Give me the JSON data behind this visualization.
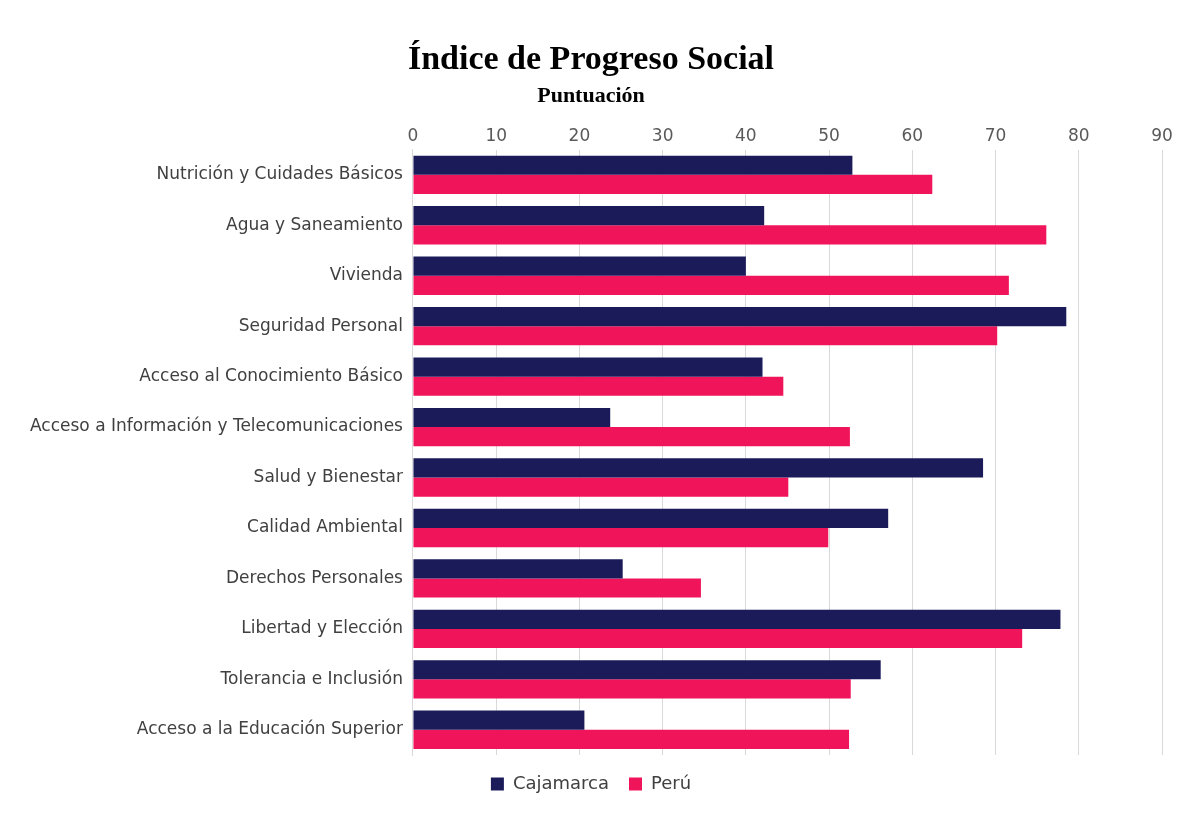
{
  "chart_data": {
    "type": "bar",
    "orientation": "horizontal",
    "title": "Índice de Progreso Social",
    "subtitle": "Puntuación",
    "categories": [
      "Nutrición y Cuidades Básicos",
      "Agua y Saneamiento",
      "Vivienda",
      "Seguridad Personal",
      "Acceso al Conocimiento Básico",
      "Acceso a Información y Telecomunicaciones",
      "Salud y Bienestar",
      "Calidad Ambiental",
      "Derechos Personales",
      "Libertad y Elección",
      "Tolerancia e Inclusión",
      "Acceso a la Educación Superior"
    ],
    "series": [
      {
        "name": "Cajamarca",
        "color": "#1b1b5a",
        "values": [
          52.8,
          42.2,
          40.0,
          78.5,
          42.0,
          23.7,
          68.5,
          57.1,
          25.2,
          77.8,
          56.2,
          20.6
        ]
      },
      {
        "name": "Perú",
        "color": "#f0145a",
        "values": [
          62.4,
          76.1,
          71.6,
          70.2,
          44.5,
          52.5,
          45.1,
          49.9,
          34.6,
          73.2,
          52.6,
          52.4
        ]
      }
    ],
    "xlim": [
      0,
      90
    ],
    "xticks": [
      0,
      10,
      20,
      30,
      40,
      50,
      60,
      70,
      80,
      90
    ],
    "grid": "x",
    "legend": "bottom"
  }
}
